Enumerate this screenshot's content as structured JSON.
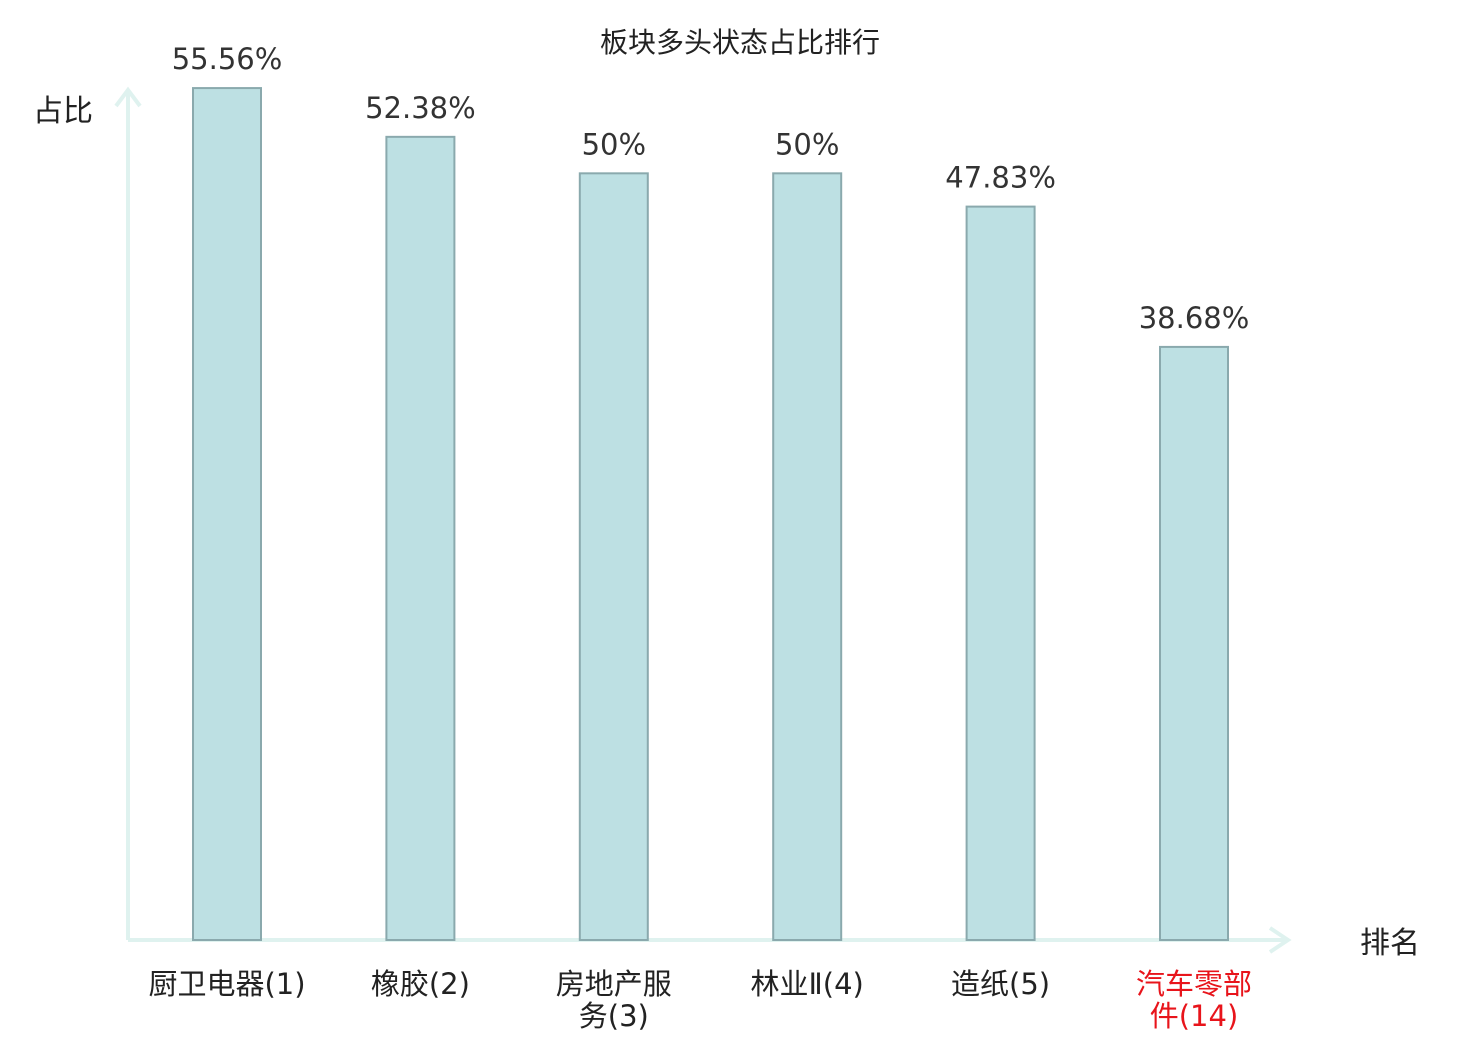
{
  "chart_data": {
    "type": "bar",
    "title": "板块多头状态占比排行",
    "ylabel": "占比",
    "xlabel": "排名",
    "categories": [
      [
        "厨卫电器(1)"
      ],
      [
        "橡胶(2)"
      ],
      [
        "房地产服",
        "务(3)"
      ],
      [
        "林业Ⅱ(4)"
      ],
      [
        "造纸(5)"
      ],
      [
        "汽车零部",
        "件(14)"
      ]
    ],
    "values": [
      55.56,
      52.38,
      50,
      50,
      47.83,
      38.68
    ],
    "value_labels": [
      "55.56%",
      "52.38%",
      "50%",
      "50%",
      "47.83%",
      "38.68%"
    ],
    "highlight_index": 5,
    "ylim": [
      0,
      60
    ],
    "grid": false,
    "colors": {
      "bar_fill": "#bde0e3",
      "bar_stroke": "#8aa9ad",
      "axis": "#dff2ef",
      "highlight_label": "#e8141b"
    }
  }
}
